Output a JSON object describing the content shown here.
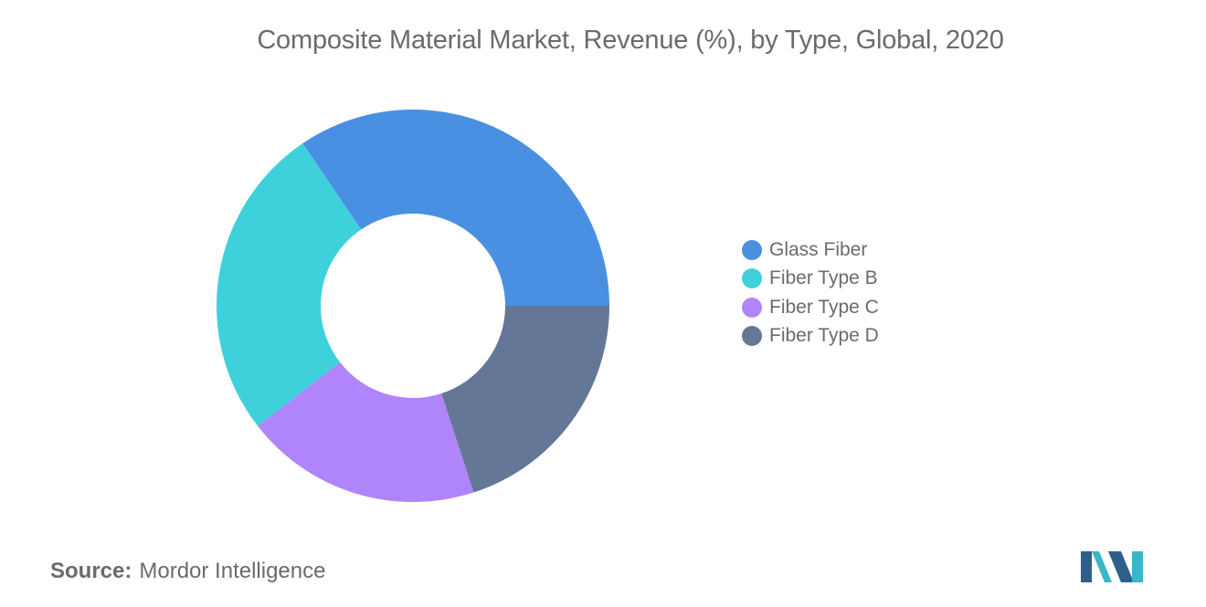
{
  "chart_data": {
    "type": "pie",
    "donut": true,
    "title": "Composite Material Market, Revenue (%), by Type, Global, 2020",
    "categories": [
      "Glass Fiber",
      "Fiber Type B",
      "Fiber Type C",
      "Fiber Type D"
    ],
    "values": [
      34.5,
      26.0,
      19.5,
      20.0
    ],
    "colors": [
      "#4a90e2",
      "#3ed1db",
      "#b084fa",
      "#647797"
    ],
    "legend": {
      "position": "right",
      "entries": [
        "Glass Fiber",
        "Fiber Type B",
        "Fiber Type C",
        "Fiber Type D"
      ]
    }
  },
  "source": {
    "label": "Source:",
    "value": "Mordor Intelligence"
  },
  "logo": {
    "icon": "mordor-intelligence-logo",
    "colors": [
      "#2e5f8a",
      "#39b6c8"
    ]
  }
}
